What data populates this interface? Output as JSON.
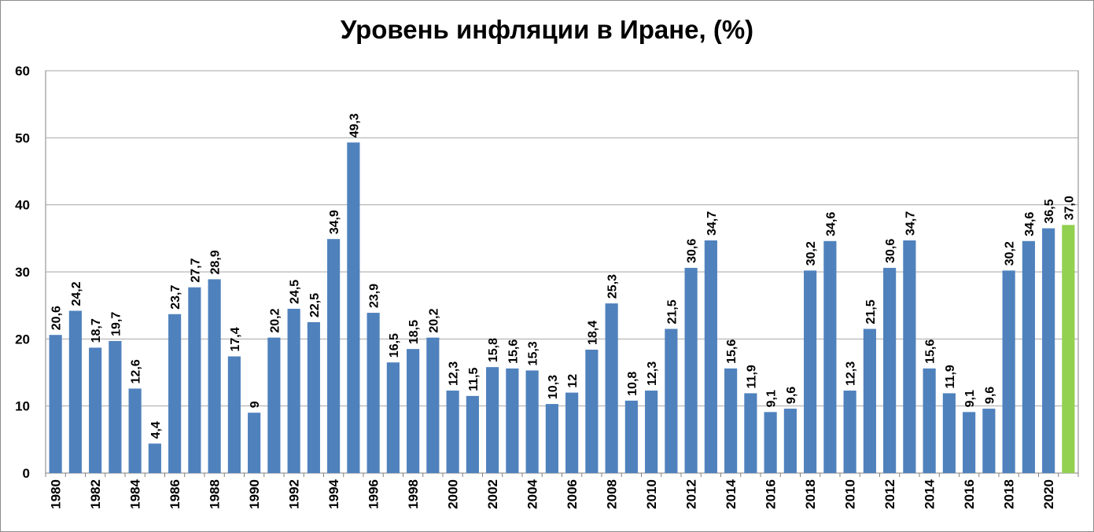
{
  "chart_data": {
    "type": "bar",
    "title": "Уровень инфляции в Иране, (%)",
    "xlabel": "",
    "ylabel": "",
    "ylim": [
      0,
      60
    ],
    "yticks": [
      "0",
      "10",
      "20",
      "30",
      "40",
      "50",
      "60"
    ],
    "grid": true,
    "categories": [
      "1980",
      "",
      "1982",
      "",
      "1984",
      "",
      "1986",
      "",
      "1988",
      "",
      "1990",
      "",
      "1992",
      "",
      "1994",
      "",
      "1996",
      "",
      "1998",
      "",
      "2000",
      "",
      "2002",
      "",
      "2004",
      "",
      "2006",
      "",
      "2008",
      "",
      "2010",
      "",
      "2012",
      "",
      "2014",
      "",
      "2016",
      "",
      "2018",
      "",
      "2010",
      "",
      "2012",
      "",
      "2014",
      "",
      "2016",
      "",
      "2018",
      "",
      "2020",
      ""
    ],
    "values": [
      20.6,
      24.2,
      18.7,
      19.7,
      12.6,
      4.4,
      23.7,
      27.7,
      28.9,
      17.4,
      9,
      20.2,
      24.5,
      22.5,
      34.9,
      49.3,
      23.9,
      16.5,
      18.5,
      20.2,
      12.3,
      11.5,
      15.8,
      15.6,
      15.3,
      10.3,
      12,
      18.4,
      25.3,
      10.8,
      12.3,
      21.5,
      30.6,
      34.7,
      15.6,
      11.9,
      9.1,
      9.6,
      30.2,
      34.6,
      12.3,
      21.5,
      30.6,
      34.7,
      15.6,
      11.9,
      9.1,
      9.6,
      30.2,
      34.6,
      36.5,
      37.0
    ],
    "data_labels": [
      "20,6",
      "24,2",
      "18,7",
      "19,7",
      "12,6",
      "4,4",
      "23,7",
      "27,7",
      "28,9",
      "17,4",
      "9",
      "20,2",
      "24,5",
      "22,5",
      "34,9",
      "49,3",
      "23,9",
      "16,5",
      "18,5",
      "20,2",
      "12,3",
      "11,5",
      "15,8",
      "15,6",
      "15,3",
      "10,3",
      "12",
      "18,4",
      "25,3",
      "10,8",
      "12,3",
      "21,5",
      "30,6",
      "34,7",
      "15,6",
      "11,9",
      "9,1",
      "9,6",
      "30,2",
      "34,6",
      "12,3",
      "21,5",
      "30,6",
      "34,7",
      "15,6",
      "11,9",
      "9,1",
      "9,6",
      "30,2",
      "34,6",
      "36,5",
      "37,0"
    ],
    "colors": {
      "bar": "#4f81bd",
      "highlight_bar": "#92d050",
      "grid": "#a6a6a6",
      "axis": "#808080"
    },
    "highlight_index": 51
  }
}
